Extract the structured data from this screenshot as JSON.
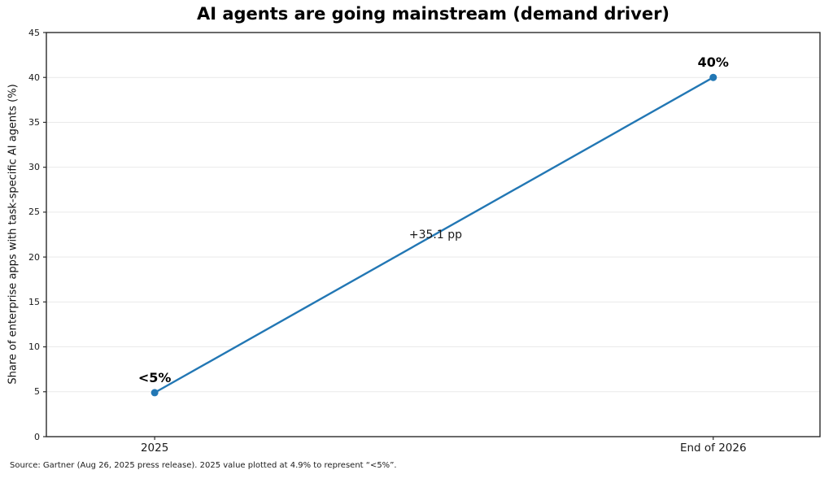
{
  "chart_data": {
    "type": "line",
    "title": "AI agents are going mainstream (demand driver)",
    "categories": [
      "2025",
      "End of 2026"
    ],
    "values": [
      4.9,
      40
    ],
    "point_labels": [
      "<5%",
      "40%"
    ],
    "annotation": "+35.1 pp",
    "xlabel": "",
    "ylabel": "Share of enterprise apps with task-specific AI agents (%)",
    "ylim": [
      0,
      45
    ],
    "yticks": [
      0,
      5,
      10,
      15,
      20,
      25,
      30,
      35,
      40,
      45
    ],
    "grid": "horizontal",
    "legend": "none",
    "line_color": "#2277b4",
    "grid_color": "#e9e9e9",
    "spine_color": "#2a2a2a",
    "marker": "circle"
  },
  "footer": {
    "source_note": "Source: Gartner (Aug 26, 2025 press release). 2025 value plotted at 4.9% to represent “<5%”."
  }
}
